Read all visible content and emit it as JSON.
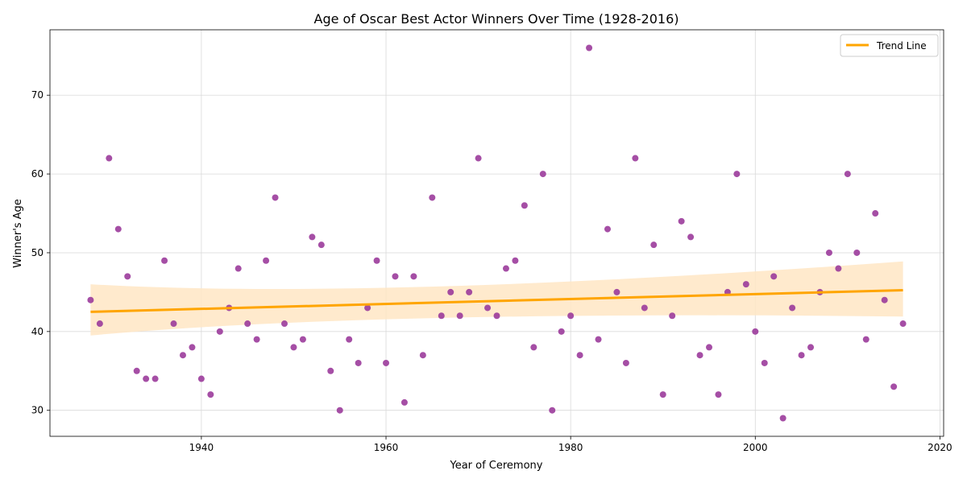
{
  "chart_data": {
    "type": "scatter",
    "title": "Age of Oscar Best Actor Winners Over Time (1928-2016)",
    "xlabel": "Year of Ceremony",
    "ylabel": "Winner's Age",
    "xlim": [
      1923.6,
      2020.4
    ],
    "ylim": [
      26.7,
      78.3
    ],
    "xticks": [
      1940,
      1960,
      1980,
      2000,
      2020
    ],
    "yticks": [
      30,
      40,
      50,
      60,
      70
    ],
    "grid": true,
    "legend": {
      "position": "top-right",
      "entries": [
        "Trend Line"
      ]
    },
    "colors": {
      "points": "#9b3b9b",
      "trend": "#ffa500",
      "band": "#ffe6c4"
    },
    "series": [
      {
        "kind": "points",
        "x": [
          1928,
          1929,
          1930,
          1931,
          1932,
          1933,
          1934,
          1935,
          1936,
          1937,
          1938,
          1939,
          1940,
          1941,
          1942,
          1943,
          1944,
          1945,
          1946,
          1947,
          1948,
          1949,
          1950,
          1951,
          1952,
          1953,
          1954,
          1955,
          1956,
          1957,
          1958,
          1959,
          1960,
          1961,
          1962,
          1963,
          1964,
          1965,
          1966,
          1967,
          1968,
          1969,
          1970,
          1971,
          1972,
          1973,
          1974,
          1975,
          1976,
          1977,
          1978,
          1979,
          1980,
          1981,
          1982,
          1983,
          1984,
          1985,
          1986,
          1987,
          1988,
          1989,
          1990,
          1991,
          1992,
          1993,
          1994,
          1995,
          1996,
          1997,
          1998,
          1999,
          2000,
          2001,
          2002,
          2003,
          2004,
          2005,
          2006,
          2007,
          2008,
          2009,
          2010,
          2011,
          2012,
          2013,
          2014,
          2015,
          2016
        ],
        "y": [
          44,
          41,
          62,
          53,
          47,
          35,
          34,
          34,
          49,
          41,
          37,
          38,
          34,
          32,
          40,
          43,
          48,
          41,
          39,
          49,
          57,
          41,
          38,
          39,
          52,
          51,
          35,
          30,
          39,
          36,
          43,
          49,
          36,
          47,
          31,
          47,
          37,
          57,
          42,
          45,
          42,
          45,
          62,
          43,
          42,
          48,
          49,
          56,
          38,
          60,
          30,
          40,
          42,
          37,
          76,
          39,
          53,
          45,
          36,
          62,
          43,
          51,
          32,
          42,
          54,
          52,
          37,
          38,
          32,
          45,
          60,
          46,
          40,
          36,
          47,
          29,
          43,
          37,
          38,
          45,
          50,
          48,
          60,
          50,
          39,
          55,
          44,
          33,
          41
        ]
      },
      {
        "kind": "trend",
        "name": "Trend Line",
        "x": [
          1928,
          2016
        ],
        "y": [
          42.5,
          45.25
        ],
        "ci_upper": [
          46.0,
          48.9
        ],
        "ci_lower": [
          39.5,
          41.9
        ],
        "ci_mid": [
          1965,
          45.7,
          41.7
        ]
      }
    ]
  }
}
